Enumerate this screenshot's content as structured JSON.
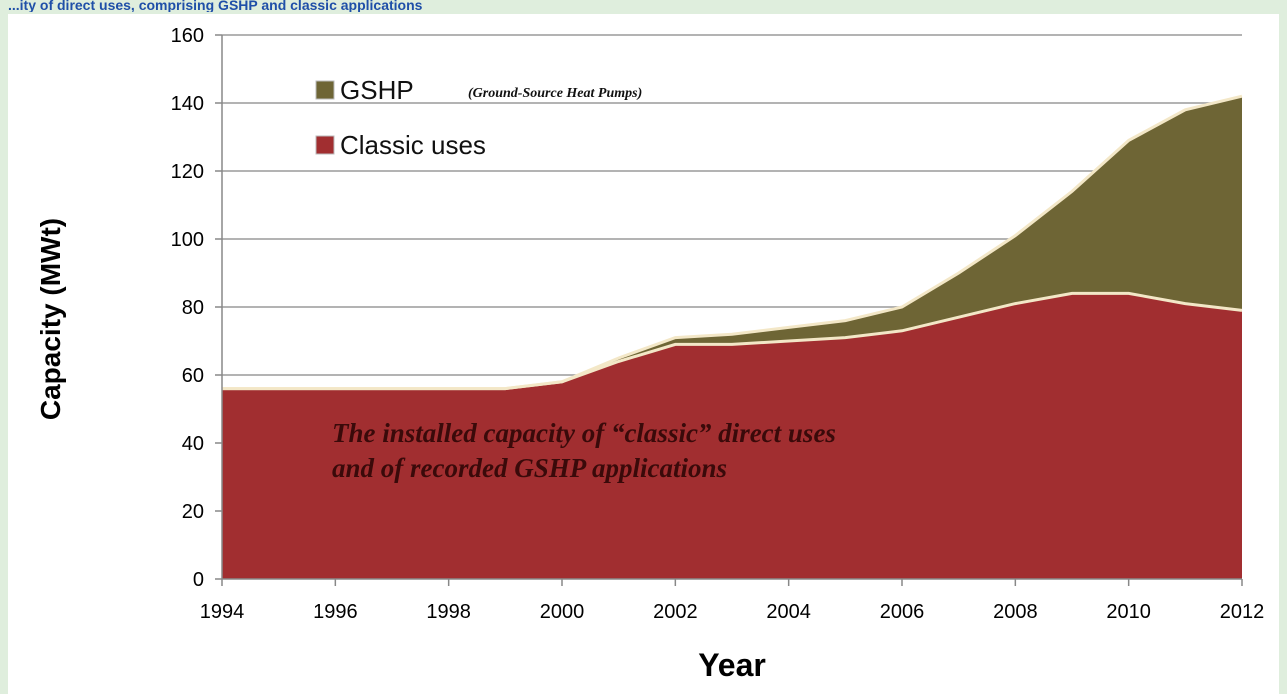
{
  "page": {
    "top_caption": "...ity of direct uses, comprising GSHP and classic applications"
  },
  "colors": {
    "page_background": "#dfeedd",
    "chart_background": "#ffffff",
    "gshp": "#6e6535",
    "classic": "#a12e30",
    "boundary": "#f3e7c7",
    "gridline": "#9a9a9a",
    "caption": "#1f4fa8"
  },
  "chart_data": {
    "type": "area",
    "stacked": true,
    "title": "",
    "xlabel": "Year",
    "ylabel": "Capacity (MWt)",
    "xlim": [
      1994,
      2012
    ],
    "ylim": [
      0,
      160
    ],
    "x_ticks": [
      1994,
      1996,
      1998,
      2000,
      2002,
      2004,
      2006,
      2008,
      2010,
      2012
    ],
    "y_ticks": [
      0,
      20,
      40,
      60,
      80,
      100,
      120,
      140,
      160
    ],
    "grid": "horizontal",
    "legend": {
      "placement": "top-left",
      "entries": [
        {
          "label": "GSHP",
          "note": "(Ground-Source Heat Pumps)",
          "color": "#6e6535"
        },
        {
          "label": "Classic uses",
          "note": "",
          "color": "#a12e30"
        }
      ]
    },
    "x": [
      1994,
      1995,
      1996,
      1997,
      1998,
      1999,
      2000,
      2001,
      2002,
      2003,
      2004,
      2005,
      2006,
      2007,
      2008,
      2009,
      2010,
      2011,
      2012
    ],
    "series": [
      {
        "name": "Classic uses",
        "values": [
          56,
          56,
          56,
          56,
          56,
          56,
          58,
          64,
          69,
          69,
          70,
          71,
          73,
          77,
          81,
          84,
          84,
          81,
          79
        ]
      },
      {
        "name": "GSHP",
        "values": [
          0,
          0,
          0,
          0,
          0,
          0,
          0,
          1,
          2,
          3,
          4,
          5,
          7,
          13,
          20,
          30,
          45,
          57,
          63
        ]
      }
    ],
    "annotation": {
      "lines": [
        "The installed capacity of “classic” direct uses",
        "and of recorded GSHP applications"
      ]
    }
  }
}
